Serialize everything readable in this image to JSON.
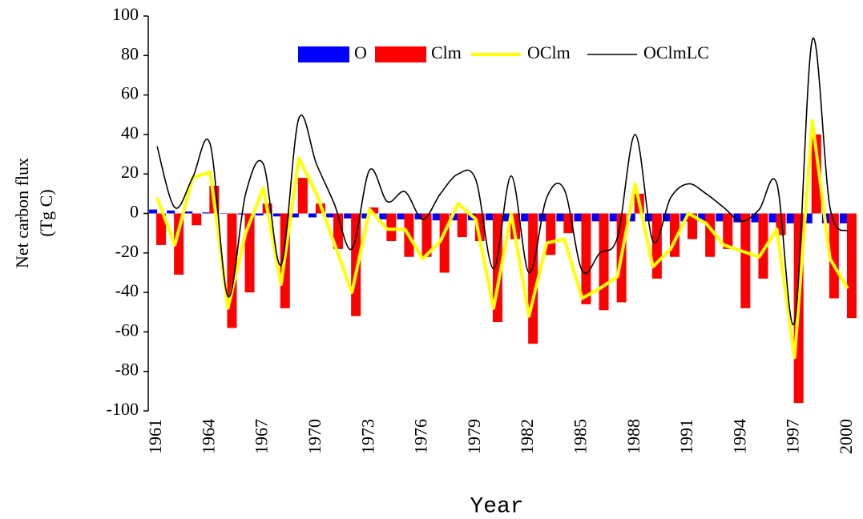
{
  "chart_data": {
    "type": "bar_line",
    "y_label": [
      "Net carbon flux",
      "(Tg C)"
    ],
    "x_label": "Year",
    "categories": [
      "1961",
      null,
      null,
      "1964",
      null,
      null,
      "1967",
      null,
      null,
      "1970",
      null,
      null,
      "1973",
      null,
      null,
      "1976",
      null,
      null,
      "1979",
      null,
      null,
      "1982",
      null,
      null,
      "1985",
      null,
      null,
      "1988",
      null,
      null,
      "1991",
      null,
      null,
      "1994",
      null,
      null,
      "1997",
      null,
      null,
      "2000"
    ],
    "series": [
      {
        "name": "O",
        "kind": "bar",
        "color": "#0000ff",
        "values": [
          2,
          1.5,
          1,
          0.5,
          0,
          -0.5,
          -1,
          -1.5,
          -2,
          -2,
          -2,
          -2.5,
          -2.5,
          -3,
          -3,
          -3,
          -3.5,
          -3.5,
          -3.5,
          -3.5,
          -4,
          -4,
          -4,
          -4,
          -4,
          -4,
          -4,
          -4,
          -4,
          -4,
          -4,
          -4,
          -4,
          -4.5,
          -4.5,
          -4.5,
          -5,
          -5,
          -5,
          -5
        ]
      },
      {
        "name": "Clm",
        "kind": "bar",
        "color": "#ff0000",
        "values": [
          -16,
          -31,
          -6,
          14,
          -58,
          -40,
          5,
          -48,
          18,
          5,
          -18,
          -52,
          3,
          -14,
          -22,
          -22,
          -30,
          -12,
          -14,
          -55,
          -13,
          -66,
          -21,
          -10,
          -46,
          -49,
          -45,
          10,
          -33,
          -22,
          -13,
          -22,
          -18,
          -48,
          -33,
          -11,
          -96,
          40,
          -43,
          -53
        ]
      },
      {
        "name": "OClm",
        "kind": "line",
        "color": "#ffff00",
        "values": [
          8,
          -16,
          18,
          21,
          -48,
          -10,
          13,
          -36,
          28,
          10,
          -15,
          -40,
          2,
          -8,
          -8,
          -23,
          -14,
          5,
          -3,
          -48,
          0,
          -52,
          -15,
          -13,
          -43,
          -38,
          -32,
          15,
          -27,
          -18,
          0,
          -5,
          -16,
          -19,
          -22,
          -8,
          -73,
          47,
          -23,
          -38
        ]
      },
      {
        "name": "OClmLC",
        "kind": "smooth_line",
        "color": "#000000",
        "values": [
          34,
          3,
          18,
          35,
          -42,
          10,
          25,
          -26,
          48,
          25,
          5,
          -18,
          22,
          6,
          11,
          -3,
          10,
          20,
          17,
          -28,
          19,
          -30,
          8,
          12,
          -29,
          -20,
          -12,
          40,
          -14,
          8,
          15,
          10,
          3,
          -4,
          2,
          15,
          -55,
          88,
          3,
          -9
        ]
      }
    ],
    "ylim": [
      -100,
      100
    ],
    "yticks": [
      -100,
      -80,
      -60,
      -40,
      -20,
      0,
      20,
      40,
      60,
      80,
      100
    ],
    "legend": "top"
  }
}
